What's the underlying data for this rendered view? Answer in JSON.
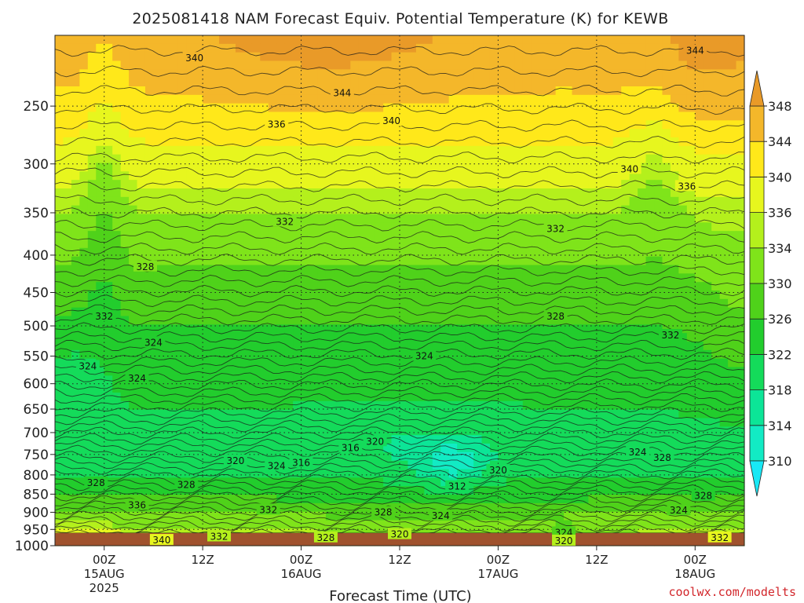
{
  "chart_data": {
    "type": "heatmap",
    "title": "2025081418 NAM Forecast Equiv. Potential Temperature (K) for KEWB",
    "xlabel": "Forecast Time (UTC)",
    "ylabel": "",
    "credit": "coolwx.com/modelts",
    "y_axis": {
      "scale": "pressure",
      "ticks": [
        250,
        300,
        350,
        400,
        450,
        500,
        550,
        600,
        650,
        700,
        750,
        800,
        850,
        900,
        950,
        1000
      ],
      "range": [
        1000,
        200
      ]
    },
    "x_axis": {
      "ticks": [
        {
          "label": "00Z",
          "sub": "15AUG",
          "sub2": "2025",
          "hour": 6
        },
        {
          "label": "12Z",
          "sub": "",
          "sub2": "",
          "hour": 18
        },
        {
          "label": "00Z",
          "sub": "16AUG",
          "sub2": "",
          "hour": 30
        },
        {
          "label": "12Z",
          "sub": "",
          "sub2": "",
          "hour": 42
        },
        {
          "label": "00Z",
          "sub": "17AUG",
          "sub2": "",
          "hour": 54
        },
        {
          "label": "12Z",
          "sub": "",
          "sub2": "",
          "hour": 66
        },
        {
          "label": "00Z",
          "sub": "18AUG",
          "sub2": "",
          "hour": 78
        }
      ],
      "range_hours": [
        0,
        84
      ]
    },
    "colorbar": {
      "levels": [
        310,
        314,
        318,
        322,
        326,
        330,
        334,
        336,
        340,
        344,
        348
      ],
      "colors": [
        "#19e8f5",
        "#12ebc4",
        "#0ce597",
        "#14db5a",
        "#22cd2d",
        "#4fd21a",
        "#7fe41a",
        "#b4f01c",
        "#e7f61e",
        "#ffe81a",
        "#f4b72a",
        "#e99a28"
      ],
      "extend": "both"
    },
    "grid": true,
    "ground_color": "#a0522d",
    "approx_profile": {
      "pressure": [
        200,
        250,
        300,
        350,
        400,
        450,
        500,
        550,
        600,
        650,
        700,
        750,
        800,
        850,
        900,
        950,
        1000
      ],
      "theta_e_typical": [
        347,
        343,
        338,
        334,
        331,
        328,
        326,
        324,
        323,
        322,
        321,
        321,
        322,
        325,
        330,
        333,
        338
      ]
    },
    "contour_labels": [
      {
        "text": "340",
        "hour": 17,
        "p": 215
      },
      {
        "text": "344",
        "hour": 35,
        "p": 240
      },
      {
        "text": "344",
        "hour": 78,
        "p": 210
      },
      {
        "text": "336",
        "hour": 27,
        "p": 265
      },
      {
        "text": "340",
        "hour": 41,
        "p": 262
      },
      {
        "text": "340",
        "hour": 70,
        "p": 305
      },
      {
        "text": "336",
        "hour": 77,
        "p": 322
      },
      {
        "text": "332",
        "hour": 28,
        "p": 360
      },
      {
        "text": "332",
        "hour": 61,
        "p": 368
      },
      {
        "text": "328",
        "hour": 11,
        "p": 415
      },
      {
        "text": "332",
        "hour": 6,
        "p": 485
      },
      {
        "text": "324",
        "hour": 12,
        "p": 527
      },
      {
        "text": "324",
        "hour": 4,
        "p": 568
      },
      {
        "text": "324",
        "hour": 10,
        "p": 590
      },
      {
        "text": "328",
        "hour": 61,
        "p": 485
      },
      {
        "text": "332",
        "hour": 75,
        "p": 515
      },
      {
        "text": "324",
        "hour": 45,
        "p": 550
      },
      {
        "text": "320",
        "hour": 39,
        "p": 720
      },
      {
        "text": "316",
        "hour": 36,
        "p": 735
      },
      {
        "text": "320",
        "hour": 22,
        "p": 765
      },
      {
        "text": "324",
        "hour": 27,
        "p": 778
      },
      {
        "text": "316",
        "hour": 30,
        "p": 770
      },
      {
        "text": "320",
        "hour": 54,
        "p": 788
      },
      {
        "text": "324",
        "hour": 71,
        "p": 745
      },
      {
        "text": "328",
        "hour": 74,
        "p": 758
      },
      {
        "text": "328",
        "hour": 84,
        "p": 730
      },
      {
        "text": "328",
        "hour": 5,
        "p": 820
      },
      {
        "text": "328",
        "hour": 16,
        "p": 825
      },
      {
        "text": "312",
        "hour": 49,
        "p": 830
      },
      {
        "text": "336",
        "hour": 10,
        "p": 880
      },
      {
        "text": "332",
        "hour": 26,
        "p": 893
      },
      {
        "text": "328",
        "hour": 40,
        "p": 900
      },
      {
        "text": "324",
        "hour": 47,
        "p": 910
      },
      {
        "text": "328",
        "hour": 79,
        "p": 855
      },
      {
        "text": "324",
        "hour": 76,
        "p": 895
      },
      {
        "text": "340",
        "hour": 13,
        "p": 983
      },
      {
        "text": "332",
        "hour": 20,
        "p": 972
      },
      {
        "text": "328",
        "hour": 33,
        "p": 975
      },
      {
        "text": "320",
        "hour": 42,
        "p": 965
      },
      {
        "text": "324",
        "hour": 62,
        "p": 960
      },
      {
        "text": "320",
        "hour": 62,
        "p": 985
      },
      {
        "text": "332",
        "hour": 81,
        "p": 975
      }
    ]
  }
}
